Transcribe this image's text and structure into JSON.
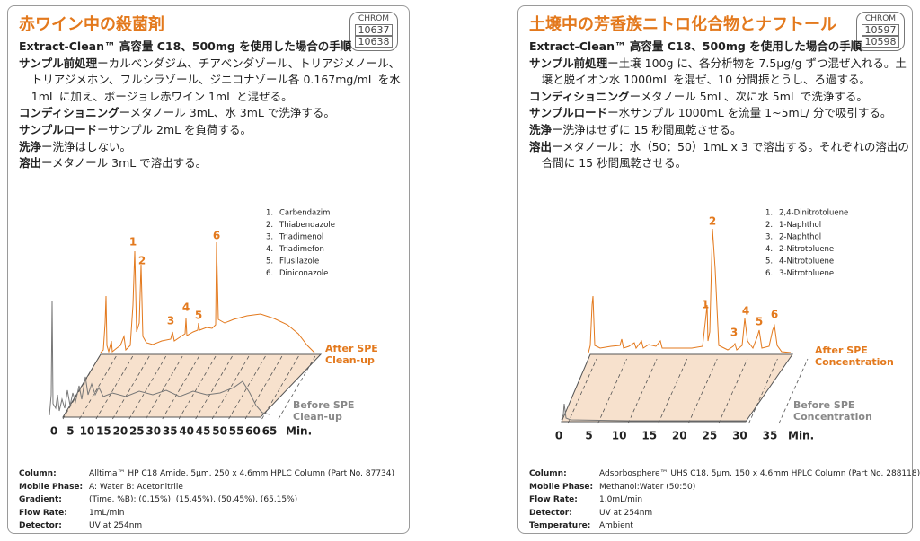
{
  "panels": [
    {
      "title": "赤ワイン中の殺菌剤",
      "badge": [
        "CHROM",
        "10637",
        "10638"
      ],
      "subtitle": "Extract-Clean™ 高容量 C18、500mg を使用した場合の手順",
      "steps": [
        {
          "label": "サンプル前処理",
          "text": "ーカルベンダジム、チアベンダゾール、トリアジメノール、トリアジメホン、フルシラゾール、ジニコナゾール各 0.167mg/mL を水 1mL に加え、ボージョレ赤ワイン 1mL と混ぜる。"
        },
        {
          "label": "コンディショニング",
          "text": "ーメタノール 3mL、水 3mL で洗浄する。"
        },
        {
          "label": "サンプルロード",
          "text": "ーサンプル 2mL を負荷する。"
        },
        {
          "label": "洗浄",
          "text": "ー洗浄はしない。"
        },
        {
          "label": "溶出",
          "text": "ーメタノール 3mL で溶出する。"
        }
      ],
      "legend": [
        {
          "num": "1.",
          "name": "Carbendazim"
        },
        {
          "num": "2.",
          "name": "Thiabendazole"
        },
        {
          "num": "3.",
          "name": "Triadimenol"
        },
        {
          "num": "4.",
          "name": "Triadimefon"
        },
        {
          "num": "5.",
          "name": "Flusilazole"
        },
        {
          "num": "6.",
          "name": "Diniconazole"
        }
      ],
      "peak_labels": [
        "1",
        "2",
        "3",
        "4",
        "5",
        "6"
      ],
      "after_label": [
        "After SPE",
        "Clean-up"
      ],
      "before_label": [
        "Before SPE",
        "Clean-up"
      ],
      "xticks": [
        0,
        5,
        10,
        15,
        20,
        25,
        30,
        35,
        40,
        45,
        50,
        55,
        60,
        65
      ],
      "x_unit": "Min.",
      "conditions": [
        {
          "label": "Column:",
          "value": "Alltima™ HP C18 Amide, 5µm, 250 x 4.6mm HPLC Column (Part No. 87734)"
        },
        {
          "label": "Mobile Phase:",
          "value": "A: Water  B: Acetonitrile"
        },
        {
          "label": "Gradient:",
          "value": "(Time, %B): (0,15%), (15,45%), (50,45%), (65,15%)"
        },
        {
          "label": "Flow Rate:",
          "value": "1mL/min"
        },
        {
          "label": "Detector:",
          "value": "UV at 254nm"
        }
      ]
    },
    {
      "title": "土壌中の芳香族ニトロ化合物とナフトール",
      "badge": [
        "CHROM",
        "10597",
        "10598"
      ],
      "subtitle": "Extract-Clean™ 高容量 C18、500mg を使用した場合の手順",
      "steps": [
        {
          "label": "サンプル前処理",
          "text": "ー土壌 100g に、各分析物を 7.5µg/g ずつ混ぜ入れる。土壌と脱イオン水 1000mL を混ぜ、10 分間振とうし、ろ過する。"
        },
        {
          "label": "コンディショニング",
          "text": "ーメタノール 5mL、次に水 5mL で洗浄する。"
        },
        {
          "label": "サンプルロード",
          "text": "ー水サンプル 1000mL を流量 1~5mL/ 分で吸引する。"
        },
        {
          "label": "洗浄",
          "text": "ー洗浄はせずに 15 秒間風乾させる。"
        },
        {
          "label": "溶出",
          "text": "ーメタノール：水（50：50）1mL x 3 で溶出する。それぞれの溶出の合間に 15 秒間風乾させる。"
        }
      ],
      "legend": [
        {
          "num": "1.",
          "name": "2,4-Dinitrotoluene"
        },
        {
          "num": "2.",
          "name": "1-Naphthol"
        },
        {
          "num": "3.",
          "name": "2-Naphthol"
        },
        {
          "num": "4.",
          "name": "2-Nitrotoluene"
        },
        {
          "num": "5.",
          "name": "4-Nitrotoluene"
        },
        {
          "num": "6.",
          "name": "3-Nitrotoluene"
        }
      ],
      "peak_labels": [
        "1",
        "2",
        "3",
        "4",
        "5",
        "6"
      ],
      "after_label": [
        "After SPE",
        "Concentration"
      ],
      "before_label": [
        "Before SPE",
        "Concentration"
      ],
      "xticks": [
        0,
        5,
        10,
        15,
        20,
        25,
        30,
        35
      ],
      "x_unit": "Min.",
      "conditions": [
        {
          "label": "Column:",
          "value": "Adsorbosphere™ UHS C18, 5µm, 150 x 4.6mm HPLC Column (Part No. 288118)"
        },
        {
          "label": "Mobile Phase:",
          "value": "Methanol:Water (50:50)"
        },
        {
          "label": "Flow Rate:",
          "value": "1.0mL/min"
        },
        {
          "label": "Detector:",
          "value": "UV at 254nm"
        },
        {
          "label": "Temperature:",
          "value": "Ambient"
        }
      ]
    }
  ]
}
